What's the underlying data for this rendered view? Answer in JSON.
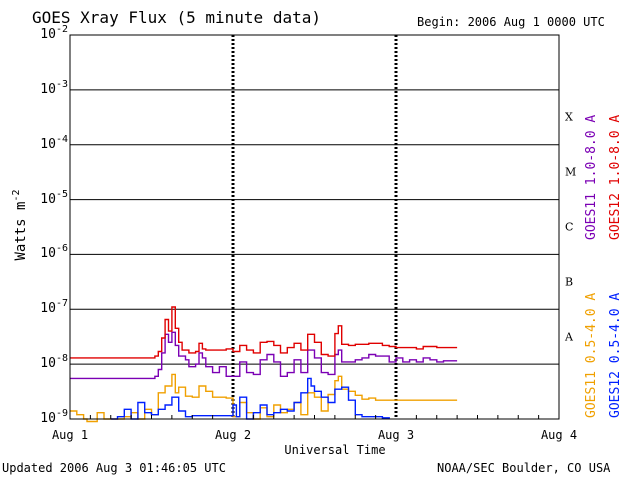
{
  "header": {
    "title": "GOES Xray Flux (5 minute data)",
    "begin": "Begin:  2006 Aug 1 0000 UTC"
  },
  "footer": {
    "updated": "Updated 2006 Aug  3 01:46:05 UTC",
    "credit": "NOAA/SEC Boulder, CO USA"
  },
  "colors": {
    "goes11_long": "#7b00b4",
    "goes12_long": "#e00000",
    "goes11_short": "#f0a000",
    "goes12_short": "#0020ff",
    "grid": "#000000"
  },
  "chart_data": {
    "type": "line",
    "xlabel": "Universal Time",
    "ylabel_base": "Watts m",
    "ylabel_exp": "-2",
    "y_scale": "log",
    "ylim": [
      1e-09,
      0.01
    ],
    "y_ticks": [
      {
        "base": "10",
        "exp": "-2",
        "value": 0.01
      },
      {
        "base": "10",
        "exp": "-3",
        "value": 0.001
      },
      {
        "base": "10",
        "exp": "-4",
        "value": 0.0001
      },
      {
        "base": "10",
        "exp": "-5",
        "value": 1e-05
      },
      {
        "base": "10",
        "exp": "-6",
        "value": 1e-06
      },
      {
        "base": "10",
        "exp": "-7",
        "value": 1e-07
      },
      {
        "base": "10",
        "exp": "-8",
        "value": 1e-08
      },
      {
        "base": "10",
        "exp": "-9",
        "value": 1e-09
      }
    ],
    "x_ticks": [
      "Aug 1",
      "Aug 2",
      "Aug 3",
      "Aug 4"
    ],
    "xlim_hours": [
      0,
      72
    ],
    "flare_classes": [
      {
        "label": "X",
        "low": 0.0001,
        "high": 0.001
      },
      {
        "label": "M",
        "low": 1e-05,
        "high": 0.0001
      },
      {
        "label": "C",
        "low": 1e-06,
        "high": 1e-05
      },
      {
        "label": "B",
        "low": 1e-07,
        "high": 1e-06
      },
      {
        "label": "A",
        "low": 1e-08,
        "high": 1e-07
      }
    ],
    "grid": true,
    "legend_placement": "right",
    "series": [
      {
        "name": "GOES11 1.0-8.0 A",
        "color": "#7b00b4",
        "points": [
          [
            0,
            5.5e-09
          ],
          [
            12,
            5.5e-09
          ],
          [
            12.5,
            6e-09
          ],
          [
            13,
            8e-09
          ],
          [
            13.5,
            1.6e-08
          ],
          [
            14,
            3.5e-08
          ],
          [
            14.5,
            2.5e-08
          ],
          [
            15,
            3.8e-08
          ],
          [
            15.5,
            2.2e-08
          ],
          [
            16,
            1.4e-08
          ],
          [
            17,
            1.2e-08
          ],
          [
            17.5,
            9e-09
          ],
          [
            18.5,
            1e-08
          ],
          [
            19,
            1.6e-08
          ],
          [
            19.5,
            1.3e-08
          ],
          [
            20,
            9e-09
          ],
          [
            21,
            7e-09
          ],
          [
            22,
            9e-09
          ],
          [
            23,
            6e-09
          ],
          [
            24,
            6e-09
          ],
          [
            25,
            1.1e-08
          ],
          [
            26,
            7e-09
          ],
          [
            27,
            6.5e-09
          ],
          [
            28,
            1.2e-08
          ],
          [
            29,
            1.5e-08
          ],
          [
            30,
            1.1e-08
          ],
          [
            31,
            6e-09
          ],
          [
            32,
            7e-09
          ],
          [
            33,
            1.2e-08
          ],
          [
            34,
            7e-09
          ],
          [
            35,
            1.8e-08
          ],
          [
            36,
            1.3e-08
          ],
          [
            37,
            7e-09
          ],
          [
            38,
            6.5e-09
          ],
          [
            39,
            1.5e-08
          ],
          [
            39.5,
            1.8e-08
          ],
          [
            40,
            1.1e-08
          ],
          [
            42,
            1.2e-08
          ],
          [
            43,
            1.3e-08
          ],
          [
            44,
            1.5e-08
          ],
          [
            45,
            1.4e-08
          ],
          [
            46,
            1.4e-08
          ],
          [
            47,
            1.1e-08
          ],
          [
            48,
            1.3e-08
          ],
          [
            49,
            1.1e-08
          ],
          [
            50,
            1.2e-08
          ],
          [
            51,
            1.1e-08
          ],
          [
            52,
            1.3e-08
          ],
          [
            53,
            1.2e-08
          ],
          [
            54,
            1.1e-08
          ],
          [
            55,
            1.15e-08
          ],
          [
            57,
            1.15e-08
          ]
        ]
      },
      {
        "name": "GOES12 1.0-8.0 A",
        "color": "#e00000",
        "points": [
          [
            0,
            1.3e-08
          ],
          [
            12,
            1.3e-08
          ],
          [
            12.5,
            1.4e-08
          ],
          [
            13,
            1.7e-08
          ],
          [
            13.5,
            3e-08
          ],
          [
            14,
            6.5e-08
          ],
          [
            14.5,
            4e-08
          ],
          [
            15,
            1.1e-07
          ],
          [
            15.5,
            4.5e-08
          ],
          [
            16,
            2.5e-08
          ],
          [
            16.5,
            1.8e-08
          ],
          [
            17.5,
            1.6e-08
          ],
          [
            18.5,
            1.7e-08
          ],
          [
            19,
            2.4e-08
          ],
          [
            19.5,
            1.9e-08
          ],
          [
            20,
            1.8e-08
          ],
          [
            22,
            1.8e-08
          ],
          [
            23,
            1.9e-08
          ],
          [
            24,
            1.7e-08
          ],
          [
            25,
            2.2e-08
          ],
          [
            26,
            1.8e-08
          ],
          [
            27,
            1.6e-08
          ],
          [
            28,
            2.5e-08
          ],
          [
            29,
            2.6e-08
          ],
          [
            30,
            2.2e-08
          ],
          [
            31,
            1.6e-08
          ],
          [
            32,
            2e-08
          ],
          [
            33,
            2.4e-08
          ],
          [
            34,
            1.8e-08
          ],
          [
            35,
            3.5e-08
          ],
          [
            36,
            2.5e-08
          ],
          [
            37,
            1.5e-08
          ],
          [
            38,
            1.4e-08
          ],
          [
            39,
            3.6e-08
          ],
          [
            39.5,
            5e-08
          ],
          [
            40,
            2.3e-08
          ],
          [
            41,
            2.2e-08
          ],
          [
            42,
            2.3e-08
          ],
          [
            43,
            2.3e-08
          ],
          [
            44,
            2.4e-08
          ],
          [
            46,
            2.2e-08
          ],
          [
            47,
            2.1e-08
          ],
          [
            48,
            2e-08
          ],
          [
            49,
            2e-08
          ],
          [
            50,
            2e-08
          ],
          [
            51,
            1.9e-08
          ],
          [
            52,
            2.1e-08
          ],
          [
            54,
            2e-08
          ],
          [
            55,
            2e-08
          ],
          [
            57,
            2e-08
          ]
        ]
      },
      {
        "name": "GOES11 0.5-4.0 A",
        "color": "#f0a000",
        "points": [
          [
            0,
            1.4e-09
          ],
          [
            1,
            1.2e-09
          ],
          [
            2,
            1e-09
          ],
          [
            2.5,
            9e-10
          ],
          [
            4,
            1.3e-09
          ],
          [
            5,
            1e-09
          ],
          [
            8,
            1.1e-09
          ],
          [
            9,
            1.3e-09
          ],
          [
            10,
            1e-09
          ],
          [
            11,
            1.5e-09
          ],
          [
            12,
            1.2e-09
          ],
          [
            13,
            3e-09
          ],
          [
            14,
            4e-09
          ],
          [
            15,
            6.5e-09
          ],
          [
            15.5,
            3e-09
          ],
          [
            16,
            3.8e-09
          ],
          [
            17,
            2.6e-09
          ],
          [
            18,
            2.5e-09
          ],
          [
            19,
            4e-09
          ],
          [
            20,
            3.2e-09
          ],
          [
            21,
            2.5e-09
          ],
          [
            23,
            2.4e-09
          ],
          [
            24,
            1.1e-09
          ],
          [
            25,
            2e-09
          ],
          [
            26,
            1.3e-09
          ],
          [
            27,
            1e-09
          ],
          [
            28,
            1.6e-09
          ],
          [
            29,
            1.1e-09
          ],
          [
            30,
            1.8e-09
          ],
          [
            31,
            1.3e-09
          ],
          [
            32,
            1.5e-09
          ],
          [
            33,
            2e-09
          ],
          [
            34,
            1.2e-09
          ],
          [
            35,
            3e-09
          ],
          [
            36,
            2.5e-09
          ],
          [
            37,
            1.4e-09
          ],
          [
            38,
            2.8e-09
          ],
          [
            39,
            5e-09
          ],
          [
            39.5,
            6e-09
          ],
          [
            40,
            3.5e-09
          ],
          [
            41,
            3.2e-09
          ],
          [
            42,
            2.7e-09
          ],
          [
            43,
            2.3e-09
          ],
          [
            44,
            2.4e-09
          ],
          [
            45,
            2.2e-09
          ],
          [
            46,
            2.2e-09
          ],
          [
            57,
            2.2e-09
          ]
        ]
      },
      {
        "name": "GOES12 0.5-4.0 A",
        "color": "#0020ff",
        "points": [
          [
            6,
            1e-09
          ],
          [
            7,
            1.1e-09
          ],
          [
            8,
            1.5e-09
          ],
          [
            9,
            1e-09
          ],
          [
            10,
            2e-09
          ],
          [
            11,
            1.3e-09
          ],
          [
            12,
            1.2e-09
          ],
          [
            13,
            1.5e-09
          ],
          [
            14,
            1.8e-09
          ],
          [
            15,
            2.5e-09
          ],
          [
            16,
            1.4e-09
          ],
          [
            17,
            1.1e-09
          ],
          [
            18,
            1.15e-09
          ],
          [
            23,
            1.15e-09
          ],
          [
            24,
            1.8e-09
          ],
          [
            24.5,
            1.1e-09
          ],
          [
            25,
            2.5e-09
          ],
          [
            26,
            1e-09
          ],
          [
            27,
            1.3e-09
          ],
          [
            28,
            1.8e-09
          ],
          [
            29,
            1.2e-09
          ],
          [
            30,
            1.3e-09
          ],
          [
            31,
            1.5e-09
          ],
          [
            32,
            1.4e-09
          ],
          [
            33,
            2e-09
          ],
          [
            34,
            3e-09
          ],
          [
            35,
            5.5e-09
          ],
          [
            35.5,
            4e-09
          ],
          [
            36,
            3.2e-09
          ],
          [
            37,
            2.5e-09
          ],
          [
            38,
            2e-09
          ],
          [
            39,
            3.5e-09
          ],
          [
            40,
            3.8e-09
          ],
          [
            41,
            2.2e-09
          ],
          [
            42,
            1.2e-09
          ],
          [
            43,
            1.1e-09
          ],
          [
            45,
            1.1e-09
          ],
          [
            46,
            1.05e-09
          ],
          [
            47,
            1e-09
          ]
        ]
      }
    ]
  }
}
